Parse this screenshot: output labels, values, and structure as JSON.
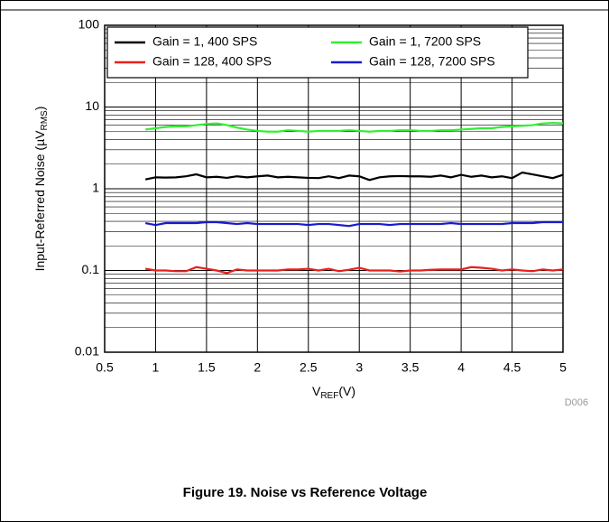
{
  "chart_data": {
    "type": "line",
    "xlabel": [
      "V",
      "REF",
      "(V)"
    ],
    "ylabel": [
      "Input-Referred Noise (µV",
      "RMS",
      ")"
    ],
    "note": "D006",
    "caption": "Figure 19. Noise vs Reference Voltage",
    "log_y": true,
    "grid": true,
    "legend": "upper",
    "xlim": [
      0.5,
      5
    ],
    "xticks": [
      0.5,
      1,
      1.5,
      2,
      2.5,
      3,
      3.5,
      4,
      4.5,
      5
    ],
    "ylim": [
      0.01,
      100
    ],
    "yticks": [
      0.01,
      0.1,
      1,
      10,
      100
    ],
    "x": [
      0.9,
      1.0,
      1.1,
      1.2,
      1.3,
      1.4,
      1.5,
      1.6,
      1.7,
      1.8,
      1.9,
      2.0,
      2.1,
      2.2,
      2.3,
      2.4,
      2.5,
      2.6,
      2.7,
      2.8,
      2.9,
      3.0,
      3.1,
      3.2,
      3.3,
      3.4,
      3.5,
      3.6,
      3.7,
      3.8,
      3.9,
      4.0,
      4.1,
      4.2,
      4.3,
      4.4,
      4.5,
      4.6,
      4.7,
      4.8,
      4.9,
      5.0
    ],
    "series": [
      {
        "name": "Gain = 1, 400 SPS",
        "color": "#000000",
        "values": [
          1.3,
          1.38,
          1.37,
          1.38,
          1.42,
          1.5,
          1.38,
          1.4,
          1.36,
          1.42,
          1.38,
          1.42,
          1.45,
          1.38,
          1.4,
          1.38,
          1.36,
          1.35,
          1.42,
          1.35,
          1.45,
          1.42,
          1.28,
          1.38,
          1.42,
          1.43,
          1.42,
          1.42,
          1.4,
          1.45,
          1.38,
          1.48,
          1.4,
          1.45,
          1.38,
          1.42,
          1.35,
          1.58,
          1.5,
          1.42,
          1.35,
          1.48
        ]
      },
      {
        "name": "Gain = 1, 7200 SPS",
        "color": "#33ee33",
        "values": [
          5.3,
          5.5,
          5.7,
          5.8,
          5.8,
          6.0,
          6.2,
          6.3,
          6.0,
          5.6,
          5.3,
          5.1,
          5.0,
          5.0,
          5.2,
          5.1,
          5.0,
          5.1,
          5.1,
          5.1,
          5.2,
          5.1,
          5.0,
          5.1,
          5.1,
          5.2,
          5.2,
          5.1,
          5.1,
          5.2,
          5.2,
          5.3,
          5.4,
          5.5,
          5.5,
          5.7,
          5.8,
          5.9,
          6.0,
          6.3,
          6.4,
          6.3
        ]
      },
      {
        "name": "Gain = 128, 400 SPS",
        "color": "#e8201c",
        "values": [
          0.105,
          0.1,
          0.1,
          0.098,
          0.098,
          0.11,
          0.105,
          0.1,
          0.093,
          0.103,
          0.1,
          0.1,
          0.1,
          0.1,
          0.103,
          0.103,
          0.105,
          0.1,
          0.105,
          0.098,
          0.102,
          0.108,
          0.1,
          0.1,
          0.1,
          0.097,
          0.1,
          0.1,
          0.102,
          0.103,
          0.103,
          0.103,
          0.11,
          0.108,
          0.105,
          0.1,
          0.103,
          0.1,
          0.098,
          0.103,
          0.1,
          0.103
        ]
      },
      {
        "name": "Gain = 128, 7200 SPS",
        "color": "#1a1acc",
        "values": [
          0.38,
          0.36,
          0.38,
          0.38,
          0.38,
          0.38,
          0.39,
          0.39,
          0.38,
          0.37,
          0.38,
          0.37,
          0.37,
          0.37,
          0.37,
          0.37,
          0.36,
          0.37,
          0.37,
          0.36,
          0.35,
          0.37,
          0.37,
          0.37,
          0.36,
          0.37,
          0.37,
          0.37,
          0.37,
          0.37,
          0.38,
          0.37,
          0.37,
          0.37,
          0.37,
          0.37,
          0.38,
          0.38,
          0.38,
          0.39,
          0.39,
          0.39
        ]
      }
    ]
  }
}
